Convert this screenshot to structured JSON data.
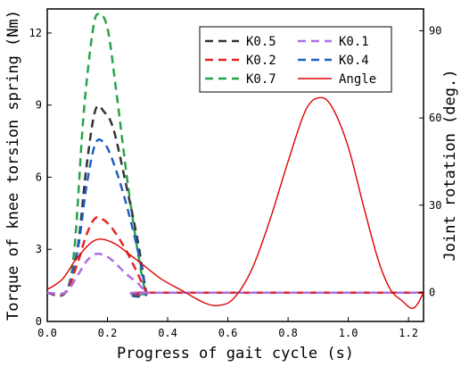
{
  "chart_data": {
    "type": "line",
    "xlabel": "Progress of gait cycle (s)",
    "ylabel_left": "Torque of knee torsion spring (Nm)",
    "ylabel_right": "Joint rotation (deg.)",
    "xlim": [
      0.0,
      1.25
    ],
    "ylim_left": [
      0,
      13
    ],
    "ylim_right": [
      -10,
      97.5
    ],
    "x_ticks": [
      "0.0",
      "0.2",
      "0.4",
      "0.6",
      "0.8",
      "1.0",
      "1.2"
    ],
    "y_ticks_left": [
      "0",
      "3",
      "6",
      "9",
      "12"
    ],
    "y_ticks_right": [
      "0",
      "30",
      "60",
      "90"
    ],
    "legend_position": "top-right",
    "series": [
      {
        "name": "K0.5",
        "color": "#333333",
        "dash": true,
        "axis": "left",
        "x": [
          0.0,
          0.06,
          0.1,
          0.13,
          0.16,
          0.19,
          0.22,
          0.26,
          0.3,
          0.33,
          0.35,
          1.25
        ],
        "y": [
          1.2,
          1.2,
          3.0,
          6.4,
          8.8,
          8.7,
          8.0,
          5.8,
          3.4,
          1.2,
          1.2,
          1.2
        ]
      },
      {
        "name": "K0.1",
        "color": "#a970e4",
        "dash": true,
        "axis": "left",
        "x": [
          0.0,
          0.06,
          0.1,
          0.13,
          0.16,
          0.19,
          0.22,
          0.26,
          0.3,
          0.33,
          0.35,
          1.25
        ],
        "y": [
          1.2,
          1.2,
          1.9,
          2.5,
          2.8,
          2.75,
          2.5,
          2.0,
          1.6,
          1.2,
          1.2,
          1.2
        ]
      },
      {
        "name": "K0.2",
        "color": "#e52424",
        "dash": true,
        "axis": "left",
        "x": [
          0.0,
          0.06,
          0.1,
          0.13,
          0.16,
          0.19,
          0.22,
          0.26,
          0.3,
          0.33,
          0.35,
          1.25
        ],
        "y": [
          1.2,
          1.2,
          2.4,
          3.6,
          4.3,
          4.2,
          3.8,
          3.0,
          2.0,
          1.2,
          1.2,
          1.2
        ]
      },
      {
        "name": "K0.4",
        "color": "#1f5fc8",
        "dash": true,
        "axis": "left",
        "x": [
          0.0,
          0.06,
          0.1,
          0.13,
          0.16,
          0.19,
          0.22,
          0.26,
          0.3,
          0.33,
          0.35,
          1.25
        ],
        "y": [
          1.2,
          1.2,
          2.9,
          5.6,
          7.4,
          7.4,
          6.6,
          5.0,
          3.0,
          1.2,
          1.2,
          1.2
        ]
      },
      {
        "name": "K0.7",
        "color": "#27a34a",
        "dash": true,
        "axis": "left",
        "x": [
          0.0,
          0.06,
          0.09,
          0.12,
          0.15,
          0.17,
          0.2,
          0.23,
          0.27,
          0.31,
          0.33,
          0.35,
          1.25
        ],
        "y": [
          1.2,
          1.2,
          3.0,
          8.5,
          12.0,
          12.8,
          12.2,
          9.5,
          5.5,
          2.2,
          1.2,
          1.2,
          1.2
        ]
      },
      {
        "name": "Angle",
        "color": "#e00000",
        "dash": false,
        "axis": "right",
        "x": [
          0.0,
          0.05,
          0.1,
          0.16,
          0.22,
          0.28,
          0.33,
          0.38,
          0.45,
          0.52,
          0.57,
          0.62,
          0.68,
          0.74,
          0.8,
          0.86,
          0.91,
          0.95,
          1.0,
          1.05,
          1.1,
          1.14,
          1.18,
          1.21,
          1.23,
          1.25
        ],
        "y": [
          1.0,
          4.5,
          12.0,
          18.0,
          17.0,
          12.5,
          8.5,
          4.5,
          0.5,
          -3.5,
          -4.5,
          -2.0,
          8.0,
          25.0,
          45.0,
          63.0,
          67.0,
          63.0,
          50.0,
          30.0,
          11.0,
          1.0,
          -3.0,
          -5.5,
          -4.0,
          0.0
        ]
      }
    ]
  }
}
